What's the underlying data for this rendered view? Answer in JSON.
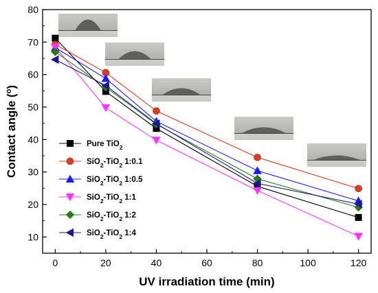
{
  "chart_data": {
    "type": "line",
    "xlabel": "UV irradiation time (min)",
    "ylabel": "Contact angle (",
    "ylabel_unit": "o",
    "ylabel_close": ")",
    "x": [
      0,
      20,
      40,
      80,
      120
    ],
    "xlim": [
      -5,
      125
    ],
    "ylim": [
      5,
      80
    ],
    "xticks": [
      0,
      20,
      40,
      60,
      80,
      100,
      120
    ],
    "yticks": [
      10,
      20,
      30,
      40,
      50,
      60,
      70,
      80
    ],
    "grid": false,
    "legend_placement": "lower-left",
    "series": [
      {
        "name": "Pure TiO2",
        "label_parts": [
          "Pure TiO",
          "2",
          ""
        ],
        "color": "#000000",
        "marker": "square",
        "values": [
          71.2,
          54.8,
          43.4,
          25.6,
          16.0
        ]
      },
      {
        "name": "SiO2-TiO2 1:0.1",
        "label_parts": [
          "SiO",
          "2",
          "-TiO",
          "2",
          " 1:0.1"
        ],
        "color": "#e03a20",
        "marker": "circle",
        "values": [
          69.3,
          60.6,
          48.8,
          34.5,
          24.9
        ]
      },
      {
        "name": "SiO2-TiO2 1:0.5",
        "label_parts": [
          "SiO",
          "2",
          "-TiO",
          "2",
          " 1:0.5"
        ],
        "color": "#1a1aff",
        "marker": "triangle-up",
        "values": [
          68.3,
          58.8,
          45.6,
          30.4,
          21.1
        ]
      },
      {
        "name": "SiO2-TiO2 1:1",
        "label_parts": [
          "SiO",
          "2",
          "-TiO",
          "2",
          " 1:1"
        ],
        "color": "#ff33ff",
        "marker": "triangle-down",
        "values": [
          68.5,
          49.8,
          39.8,
          24.3,
          10.2
        ]
      },
      {
        "name": "SiO2-TiO2 1:2",
        "label_parts": [
          "SiO",
          "2",
          "-TiO",
          "2",
          " 1:2"
        ],
        "color": "#2a7a1a",
        "marker": "diamond",
        "values": [
          67.0,
          56.1,
          44.7,
          27.9,
          19.1
        ]
      },
      {
        "name": "SiO2-TiO2 1:4",
        "label_parts": [
          "SiO",
          "2",
          "-TiO",
          "2",
          " 1:4"
        ],
        "color": "#1a1a8a",
        "marker": "triangle-left",
        "values": [
          64.6,
          56.6,
          44.9,
          26.5,
          20.1
        ]
      }
    ],
    "insets": [
      {
        "label": "droplet-photo-0min"
      },
      {
        "label": "droplet-photo-20min"
      },
      {
        "label": "droplet-photo-40min"
      },
      {
        "label": "droplet-photo-80min"
      },
      {
        "label": "droplet-photo-120min"
      }
    ]
  }
}
